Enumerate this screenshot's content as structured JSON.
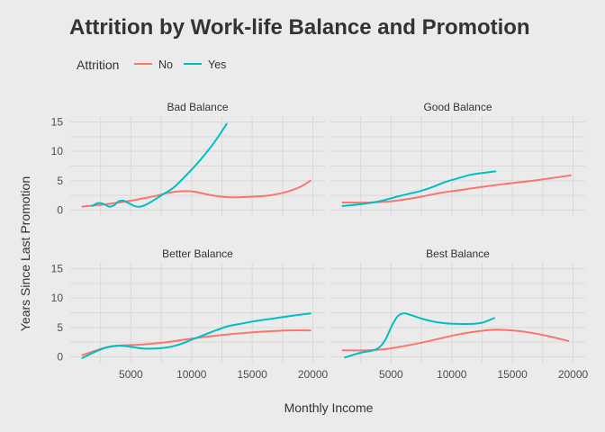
{
  "chart_data": {
    "type": "line",
    "title": "Attrition by Work-life Balance and Promotion",
    "xlabel": "Monthly Income",
    "ylabel": "Years Since Last Promotion",
    "xlim": [
      0,
      21000
    ],
    "ylim": [
      -1,
      16
    ],
    "x_ticks": [
      5000,
      10000,
      15000,
      20000
    ],
    "y_ticks": [
      0,
      5,
      10,
      15
    ],
    "grid": true,
    "legend": {
      "title": "Attrition",
      "position": "top-left",
      "entries": [
        {
          "name": "No",
          "color": "#F8766D"
        },
        {
          "name": "Yes",
          "color": "#00BFC4"
        }
      ]
    },
    "panels": [
      {
        "label": "Bad Balance",
        "series": [
          {
            "name": "No",
            "color": "#F8766D",
            "points": [
              [
                1000,
                0.6
              ],
              [
                2000,
                0.8
              ],
              [
                3000,
                1.0
              ],
              [
                4000,
                1.3
              ],
              [
                5000,
                1.6
              ],
              [
                6000,
                2.0
              ],
              [
                7000,
                2.4
              ],
              [
                8000,
                2.9
              ],
              [
                9000,
                3.2
              ],
              [
                10000,
                3.2
              ],
              [
                11000,
                2.8
              ],
              [
                12000,
                2.4
              ],
              [
                13000,
                2.2
              ],
              [
                14000,
                2.2
              ],
              [
                15000,
                2.3
              ],
              [
                16000,
                2.4
              ],
              [
                17000,
                2.7
              ],
              [
                18000,
                3.2
              ],
              [
                19000,
                4.0
              ],
              [
                19800,
                5.0
              ]
            ]
          },
          {
            "name": "Yes",
            "color": "#00BFC4",
            "points": [
              [
                1800,
                0.7
              ],
              [
                2300,
                1.2
              ],
              [
                2800,
                1.0
              ],
              [
                3200,
                0.6
              ],
              [
                3600,
                0.8
              ],
              [
                4000,
                1.5
              ],
              [
                4400,
                1.6
              ],
              [
                4800,
                1.2
              ],
              [
                5300,
                0.7
              ],
              [
                5800,
                0.6
              ],
              [
                6500,
                1.2
              ],
              [
                7500,
                2.5
              ],
              [
                8500,
                3.8
              ],
              [
                9500,
                5.8
              ],
              [
                10500,
                8.0
              ],
              [
                11500,
                10.5
              ],
              [
                12200,
                12.5
              ],
              [
                12900,
                14.7
              ]
            ]
          }
        ]
      },
      {
        "label": "Good Balance",
        "series": [
          {
            "name": "No",
            "color": "#F8766D",
            "points": [
              [
                1000,
                1.3
              ],
              [
                3000,
                1.3
              ],
              [
                5000,
                1.5
              ],
              [
                7000,
                2.1
              ],
              [
                9000,
                2.9
              ],
              [
                11000,
                3.5
              ],
              [
                13000,
                4.1
              ],
              [
                15000,
                4.6
              ],
              [
                17000,
                5.1
              ],
              [
                19800,
                5.9
              ]
            ]
          },
          {
            "name": "Yes",
            "color": "#00BFC4",
            "points": [
              [
                1000,
                0.7
              ],
              [
                2500,
                1.0
              ],
              [
                4000,
                1.5
              ],
              [
                5500,
                2.3
              ],
              [
                6500,
                2.8
              ],
              [
                7500,
                3.3
              ],
              [
                8500,
                4.0
              ],
              [
                9500,
                4.8
              ],
              [
                10500,
                5.4
              ],
              [
                11500,
                6.0
              ],
              [
                12500,
                6.3
              ],
              [
                13600,
                6.6
              ]
            ]
          }
        ]
      },
      {
        "label": "Better Balance",
        "series": [
          {
            "name": "No",
            "color": "#F8766D",
            "points": [
              [
                1000,
                0.3
              ],
              [
                2000,
                1.0
              ],
              [
                3000,
                1.6
              ],
              [
                4000,
                1.9
              ],
              [
                5000,
                2.0
              ],
              [
                6000,
                2.1
              ],
              [
                7000,
                2.3
              ],
              [
                8000,
                2.5
              ],
              [
                9000,
                2.8
              ],
              [
                10000,
                3.1
              ],
              [
                12000,
                3.6
              ],
              [
                14000,
                4.0
              ],
              [
                16000,
                4.3
              ],
              [
                18000,
                4.5
              ],
              [
                19800,
                4.5
              ]
            ]
          },
          {
            "name": "Yes",
            "color": "#00BFC4",
            "points": [
              [
                1000,
                -0.2
              ],
              [
                2000,
                0.8
              ],
              [
                3000,
                1.6
              ],
              [
                4000,
                1.9
              ],
              [
                5000,
                1.7
              ],
              [
                6000,
                1.4
              ],
              [
                7000,
                1.4
              ],
              [
                8000,
                1.6
              ],
              [
                9000,
                2.1
              ],
              [
                10000,
                2.9
              ],
              [
                11000,
                3.7
              ],
              [
                12000,
                4.5
              ],
              [
                13000,
                5.2
              ],
              [
                14000,
                5.6
              ],
              [
                15000,
                6.0
              ],
              [
                16000,
                6.3
              ],
              [
                17000,
                6.6
              ],
              [
                18000,
                6.9
              ],
              [
                19800,
                7.4
              ]
            ]
          }
        ]
      },
      {
        "label": "Best Balance",
        "series": [
          {
            "name": "No",
            "color": "#F8766D",
            "points": [
              [
                1000,
                1.1
              ],
              [
                3000,
                1.1
              ],
              [
                4500,
                1.3
              ],
              [
                6000,
                1.8
              ],
              [
                7500,
                2.4
              ],
              [
                9000,
                3.1
              ],
              [
                10500,
                3.8
              ],
              [
                12000,
                4.3
              ],
              [
                13500,
                4.6
              ],
              [
                15000,
                4.5
              ],
              [
                16500,
                4.1
              ],
              [
                18000,
                3.5
              ],
              [
                19600,
                2.7
              ]
            ]
          },
          {
            "name": "Yes",
            "color": "#00BFC4",
            "points": [
              [
                1200,
                -0.1
              ],
              [
                2500,
                0.7
              ],
              [
                3800,
                1.3
              ],
              [
                4500,
                2.8
              ],
              [
                5000,
                5.0
              ],
              [
                5500,
                6.8
              ],
              [
                6000,
                7.4
              ],
              [
                6500,
                7.2
              ],
              [
                7500,
                6.5
              ],
              [
                8500,
                6.0
              ],
              [
                9500,
                5.7
              ],
              [
                10500,
                5.6
              ],
              [
                11500,
                5.6
              ],
              [
                12500,
                5.8
              ],
              [
                13500,
                6.6
              ]
            ]
          }
        ]
      }
    ]
  }
}
